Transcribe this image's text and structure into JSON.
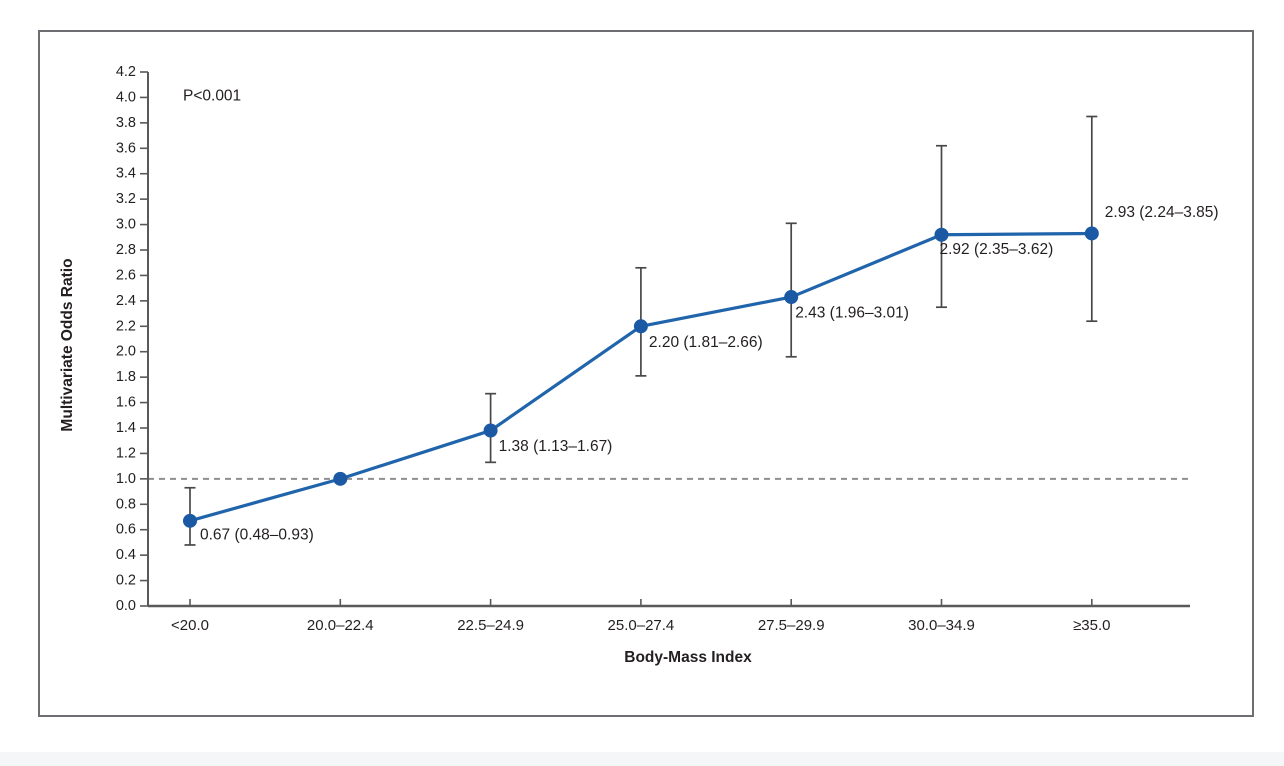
{
  "chart_data": {
    "type": "line",
    "title": "",
    "xlabel": "Body-Mass Index",
    "ylabel": "Multivariate Odds Ratio",
    "annotation": "P<0.001",
    "categories": [
      "<20.0",
      "20.0–22.4",
      "22.5–24.9",
      "25.0–27.4",
      "27.5–29.9",
      "30.0–34.9",
      "≥35.0"
    ],
    "series": [
      {
        "name": "Multivariate odds ratio",
        "values": [
          0.67,
          1.0,
          1.38,
          2.2,
          2.43,
          2.92,
          2.93
        ],
        "ci_low": [
          0.48,
          null,
          1.13,
          1.81,
          1.96,
          2.35,
          2.24
        ],
        "ci_high": [
          0.93,
          null,
          1.67,
          2.66,
          3.01,
          3.62,
          3.85
        ],
        "point_labels": [
          "0.67 (0.48–0.93)",
          "",
          "1.38 (1.13–1.67)",
          "2.20 (1.81–2.66)",
          "2.43 (1.96–3.01)",
          "2.92 (2.35–3.62)",
          "2.93 (2.24–3.85)"
        ]
      }
    ],
    "reference_line_y": 1.0,
    "ylim": [
      0.0,
      4.2
    ],
    "ytick_step": 0.2,
    "grid": false,
    "legend_position": "none",
    "colors": {
      "line": "#2065ab",
      "marker": "#1b59a4",
      "error_bar": "#48484a",
      "reference_line": "#8e8e8e",
      "axis": "#58595b",
      "text": "#231f20",
      "frame": "#6d6e71",
      "footer": "#f5f6f7",
      "background": "#ffffff"
    }
  }
}
